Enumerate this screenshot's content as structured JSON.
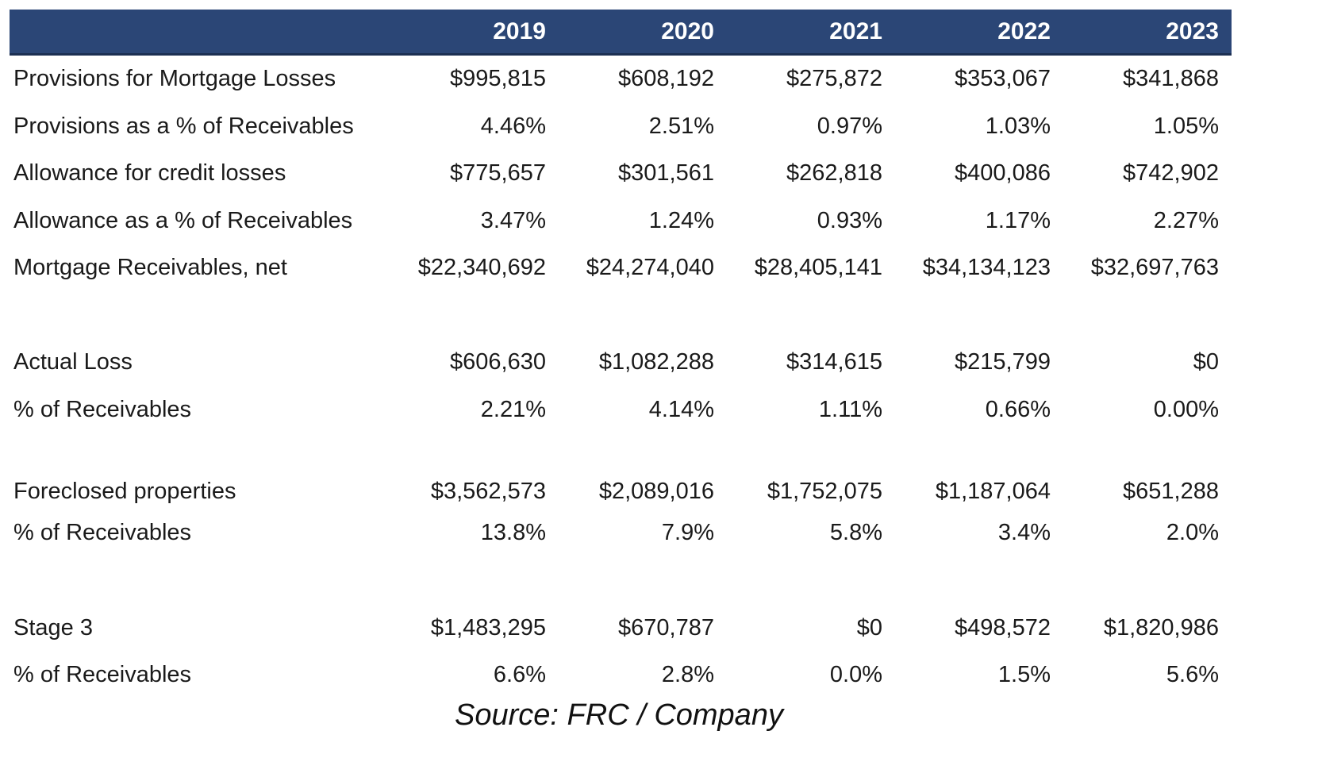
{
  "header": {
    "years": [
      "2019",
      "2020",
      "2021",
      "2022",
      "2023"
    ]
  },
  "rows": [
    {
      "label": "Provisions for Mortgage Losses",
      "values": [
        "$995,815",
        "$608,192",
        "$275,872",
        "$353,067",
        "$341,868"
      ]
    },
    {
      "label": "Provisions as a % of Receivables",
      "values": [
        "4.46%",
        "2.51%",
        "0.97%",
        "1.03%",
        "1.05%"
      ]
    },
    {
      "label": "Allowance for credit losses",
      "values": [
        "$775,657",
        "$301,561",
        "$262,818",
        "$400,086",
        "$742,902"
      ]
    },
    {
      "label": "Allowance as a % of Receivables",
      "values": [
        "3.47%",
        "1.24%",
        "0.93%",
        "1.17%",
        "2.27%"
      ]
    },
    {
      "label": "Mortgage Receivables, net",
      "values": [
        "$22,340,692",
        "$24,274,040",
        "$28,405,141",
        "$34,134,123",
        "$32,697,763"
      ]
    },
    {
      "label": "Actual Loss",
      "values": [
        "$606,630",
        "$1,082,288",
        "$314,615",
        "$215,799",
        "$0"
      ]
    },
    {
      "label": "% of Receivables",
      "values": [
        "2.21%",
        "4.14%",
        "1.11%",
        "0.66%",
        "0.00%"
      ]
    },
    {
      "label": "Foreclosed properties",
      "values": [
        "$3,562,573",
        "$2,089,016",
        "$1,752,075",
        "$1,187,064",
        "$651,288"
      ]
    },
    {
      "label": "% of Receivables",
      "values": [
        "13.8%",
        "7.9%",
        "5.8%",
        "3.4%",
        "2.0%"
      ]
    },
    {
      "label": "Stage 3",
      "values": [
        "$1,483,295",
        "$670,787",
        "$0",
        "$498,572",
        "$1,820,986"
      ]
    },
    {
      "label": "% of Receivables",
      "values": [
        "6.6%",
        "2.8%",
        "0.0%",
        "1.5%",
        "5.6%"
      ]
    }
  ],
  "source": "Source: FRC / Company",
  "colors": {
    "header_bg": "#2b4676",
    "header_text": "#ffffff"
  }
}
